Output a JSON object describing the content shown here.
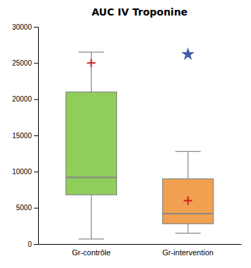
{
  "chart_data": {
    "type": "box",
    "title": "AUC IV Troponine",
    "categories": [
      "Gr-contrôle",
      "Gr-intervention"
    ],
    "series": [
      {
        "type": "box",
        "color": "#888888",
        "colors": [
          "#8fce5a",
          "#f0a050"
        ],
        "q1": [
          6800,
          2800
        ],
        "median": [
          9200,
          4200
        ],
        "q3": [
          21000,
          9000
        ],
        "whisker_low": [
          700,
          1500
        ],
        "whisker_high": [
          26500,
          12800
        ]
      },
      {
        "type": "scatter",
        "marker": "plus",
        "color": "#cc2222",
        "values": [
          25000,
          6000
        ]
      },
      {
        "type": "scatter",
        "marker": "star",
        "color": "#3f5faa",
        "values": [
          null,
          26200
        ]
      }
    ],
    "ylim": [
      0,
      30000
    ],
    "yticks": [
      0,
      5000,
      10000,
      15000,
      20000,
      25000,
      30000
    ],
    "grid": false
  }
}
